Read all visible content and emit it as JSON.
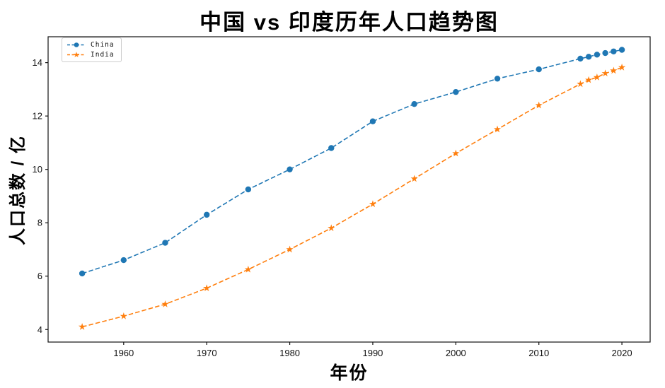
{
  "chart_data": {
    "type": "line",
    "title": "中国 vs 印度历年人口趋势图",
    "xlabel": "年份",
    "ylabel": "人口总数 / 亿",
    "x": [
      1955,
      1960,
      1965,
      1970,
      1975,
      1980,
      1985,
      1990,
      1995,
      2000,
      2005,
      2010,
      2015,
      2016,
      2017,
      2018,
      2019,
      2020
    ],
    "series": [
      {
        "name": "China",
        "color": "#1f77b4",
        "marker": "circle",
        "linestyle": "dashed",
        "values": [
          6.1,
          6.6,
          7.25,
          8.3,
          9.25,
          10.0,
          10.8,
          11.8,
          12.45,
          12.9,
          13.4,
          13.75,
          14.15,
          14.22,
          14.3,
          14.36,
          14.42,
          14.48
        ]
      },
      {
        "name": "India",
        "color": "#ff7f0e",
        "marker": "star",
        "linestyle": "dashed",
        "values": [
          4.1,
          4.5,
          4.95,
          5.55,
          6.25,
          7.0,
          7.8,
          8.7,
          9.65,
          10.6,
          11.5,
          12.4,
          13.2,
          13.35,
          13.45,
          13.6,
          13.7,
          13.82
        ]
      }
    ],
    "x_ticks": [
      1960,
      1970,
      1980,
      1990,
      2000,
      2010,
      2020
    ],
    "y_ticks": [
      4,
      6,
      8,
      10,
      12,
      14
    ],
    "xlim": [
      1950.9,
      2023.4
    ],
    "ylim": [
      3.53,
      14.97
    ],
    "grid": false,
    "legend_position": "upper-left",
    "axis_color": "#111111",
    "text_color": "#111111",
    "background": "#ffffff"
  }
}
